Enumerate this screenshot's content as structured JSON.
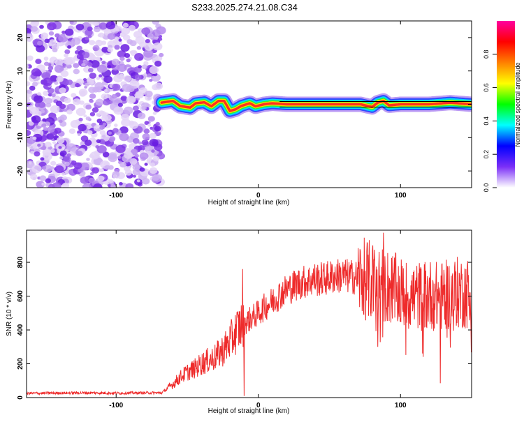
{
  "title": "S233.2025.274.21.08.C34",
  "chart_data": [
    {
      "type": "heatmap",
      "xlabel": "Height of straight line (km)",
      "ylabel": "Frequency (Hz)",
      "xlim": [
        -163,
        150
      ],
      "ylim": [
        -25,
        25
      ],
      "xticks": [
        -100,
        0,
        100
      ],
      "xtick_labels": [
        "-100",
        "0",
        "100"
      ],
      "yticks": [
        -20,
        -10,
        0,
        10,
        20
      ],
      "ytick_labels": [
        "-20",
        "-10",
        "0",
        "10",
        "20"
      ],
      "noise_region_x": [
        -163,
        -68
      ],
      "ridge_x": [
        -68,
        150
      ],
      "ridge": [
        [
          -68,
          0.5
        ],
        [
          -60,
          1.0
        ],
        [
          -55,
          -0.5
        ],
        [
          -48,
          -1.0
        ],
        [
          -44,
          0.3
        ],
        [
          -38,
          0.6
        ],
        [
          -33,
          -0.6
        ],
        [
          -28,
          1.0
        ],
        [
          -24,
          1.0
        ],
        [
          -20,
          -2.0
        ],
        [
          -16,
          -1.5
        ],
        [
          -12,
          -0.5
        ],
        [
          -6,
          0.3
        ],
        [
          -2,
          -0.6
        ],
        [
          4,
          0.0
        ],
        [
          10,
          0.3
        ],
        [
          20,
          0.0
        ],
        [
          40,
          0.0
        ],
        [
          60,
          0.0
        ],
        [
          72,
          0.0
        ],
        [
          80,
          -0.8
        ],
        [
          84,
          0.5
        ],
        [
          88,
          1.0
        ],
        [
          92,
          -0.3
        ],
        [
          100,
          0.0
        ],
        [
          120,
          0.0
        ],
        [
          135,
          0.5
        ],
        [
          150,
          0.0
        ]
      ],
      "colorbar": {
        "label": "Normalized spectral amplitude",
        "range": [
          0,
          1
        ],
        "ticks": [
          0.0,
          0.2,
          0.4,
          0.6,
          0.8
        ],
        "tick_labels": [
          "0.0",
          "0.2",
          "0.4",
          "0.6",
          "0.8"
        ],
        "colors": [
          "#ffffff",
          "#7b2ff7",
          "#0000ff",
          "#00ffff",
          "#00ff00",
          "#ffff00",
          "#ff8000",
          "#ff0000",
          "#ff00a0"
        ]
      },
      "line_color": "#000000"
    },
    {
      "type": "line",
      "xlabel": "Height of straight line (km)",
      "ylabel": "SNR (10 * v/v)",
      "xlim": [
        -163,
        150
      ],
      "ylim": [
        0,
        990
      ],
      "xticks": [
        -100,
        0,
        100
      ],
      "xtick_labels": [
        "-100",
        "0",
        "100"
      ],
      "yticks": [
        0,
        200,
        400,
        600,
        800
      ],
      "ytick_labels": [
        "0",
        "200",
        "400",
        "600",
        "800"
      ],
      "series": [
        {
          "name": "SNR",
          "color": "#ee2b2b",
          "x": [
            -163,
            -140,
            -120,
            -100,
            -80,
            -68,
            -60,
            -55,
            -50,
            -45,
            -40,
            -35,
            -30,
            -25,
            -20,
            -15,
            -12,
            -10,
            -8,
            -5,
            0,
            5,
            10,
            15,
            20,
            25,
            30,
            35,
            40,
            45,
            50,
            55,
            60,
            65,
            70,
            75,
            80,
            85,
            90,
            95,
            100,
            105,
            110,
            115,
            120,
            125,
            130,
            135,
            140,
            145,
            150
          ],
          "y": [
            25,
            27,
            28,
            26,
            28,
            28,
            80,
            120,
            150,
            170,
            200,
            220,
            240,
            280,
            330,
            400,
            430,
            440,
            450,
            470,
            500,
            540,
            570,
            610,
            640,
            660,
            680,
            690,
            700,
            700,
            710,
            720,
            720,
            715,
            710,
            700,
            690,
            670,
            660,
            640,
            620,
            600,
            600,
            600,
            610,
            600,
            600,
            610,
            620,
            620,
            620
          ]
        }
      ],
      "spikes": [
        {
          "x": -11,
          "y": 760
        },
        {
          "x": -10,
          "y": 10
        },
        {
          "x": 88,
          "y": 975
        },
        {
          "x": 84,
          "y": 300
        },
        {
          "x": 128,
          "y": 85
        }
      ]
    }
  ]
}
